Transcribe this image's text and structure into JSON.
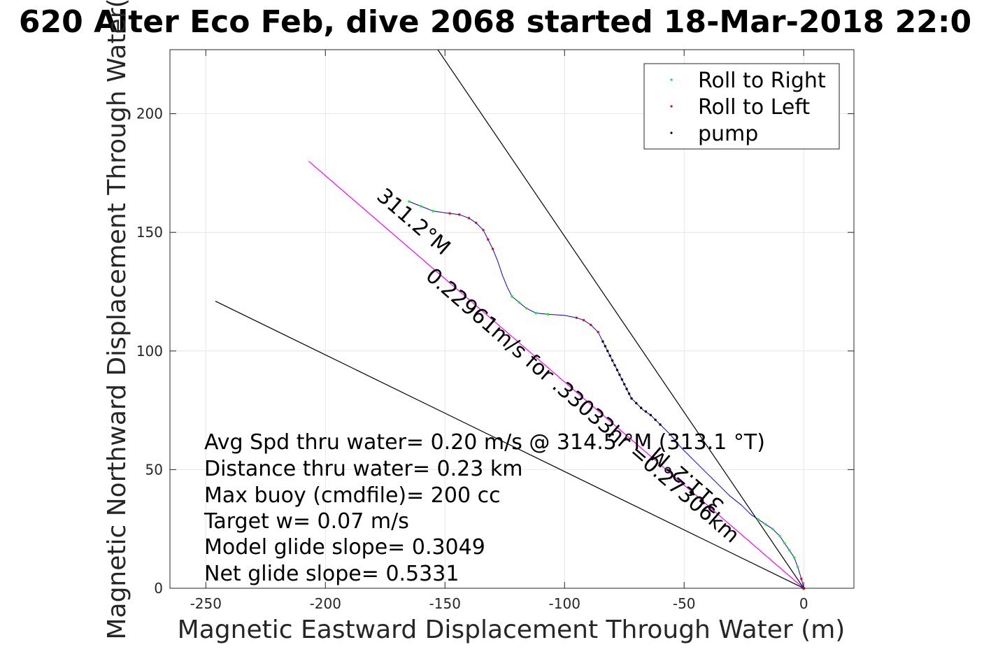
{
  "chart_data": {
    "type": "line",
    "title": "620 Alter Eco Feb, dive 2068 started 18-Mar-2018 22:0",
    "xlabel": "Magnetic Eastward Displacement Through Water (m)",
    "ylabel": "Magnetic Northward Displacement Through Water(",
    "xlim": [
      -265,
      21
    ],
    "ylim": [
      0,
      227
    ],
    "xticks": [
      -250,
      -200,
      -150,
      -100,
      -50,
      0
    ],
    "yticks": [
      0,
      50,
      100,
      150,
      200
    ],
    "grid": true,
    "legend_position": "top-right",
    "legend": [
      {
        "label": "Roll to Right",
        "color": "#00ff00"
      },
      {
        "label": "Roll to Left",
        "color": "#ff0000"
      },
      {
        "label": "pump",
        "color": "#000000"
      }
    ],
    "track": {
      "name": "dive track",
      "color": "#0000ff",
      "points": [
        [
          0,
          0
        ],
        [
          -1,
          4
        ],
        [
          -2.5,
          9
        ],
        [
          -4,
          13
        ],
        [
          -6,
          16
        ],
        [
          -8,
          19
        ],
        [
          -10,
          22
        ],
        [
          -13,
          25
        ],
        [
          -16,
          27
        ],
        [
          -19,
          29
        ],
        [
          -22,
          31
        ],
        [
          -26,
          35
        ],
        [
          -31,
          39
        ],
        [
          -36,
          44
        ],
        [
          -41,
          49
        ],
        [
          -46,
          54
        ],
        [
          -51,
          59
        ],
        [
          -56,
          65
        ],
        [
          -60,
          69
        ],
        [
          -64,
          73
        ],
        [
          -67,
          75
        ],
        [
          -70,
          78
        ],
        [
          -72,
          80
        ],
        [
          -74,
          84
        ],
        [
          -76,
          88
        ],
        [
          -78,
          92
        ],
        [
          -80,
          96
        ],
        [
          -82,
          100
        ],
        [
          -84,
          104
        ],
        [
          -86,
          108
        ],
        [
          -89,
          111
        ],
        [
          -92,
          113
        ],
        [
          -95,
          114
        ],
        [
          -100,
          115
        ],
        [
          -107,
          115.5
        ],
        [
          -112,
          116
        ],
        [
          -116,
          118
        ],
        [
          -119,
          120.5
        ],
        [
          -122,
          123
        ],
        [
          -124,
          127
        ],
        [
          -126,
          132
        ],
        [
          -128,
          138
        ],
        [
          -130,
          143
        ],
        [
          -132,
          147
        ],
        [
          -134,
          151
        ],
        [
          -137,
          154
        ],
        [
          -140,
          156
        ],
        [
          -144,
          157.5
        ],
        [
          -148,
          158
        ],
        [
          -155,
          159
        ],
        [
          -160,
          161
        ],
        [
          -165,
          163
        ]
      ],
      "markers": [
        {
          "x": -1,
          "y": 4,
          "type": "roll_left"
        },
        {
          "x": -2.5,
          "y": 9,
          "type": "roll_right"
        },
        {
          "x": -4,
          "y": 13,
          "type": "roll_right"
        },
        {
          "x": -6,
          "y": 16,
          "type": "roll_right"
        },
        {
          "x": -8,
          "y": 19,
          "type": "roll_right"
        },
        {
          "x": -10,
          "y": 22,
          "type": "roll_right"
        },
        {
          "x": -13,
          "y": 25,
          "type": "roll_right"
        },
        {
          "x": -16,
          "y": 27,
          "type": "roll_right"
        },
        {
          "x": -19,
          "y": 29,
          "type": "roll_right"
        },
        {
          "x": -60,
          "y": 69,
          "type": "pump"
        },
        {
          "x": -62,
          "y": 71,
          "type": "pump"
        },
        {
          "x": -64,
          "y": 73,
          "type": "pump"
        },
        {
          "x": -66,
          "y": 74.5,
          "type": "pump"
        },
        {
          "x": -68,
          "y": 76,
          "type": "pump"
        },
        {
          "x": -70,
          "y": 78,
          "type": "pump"
        },
        {
          "x": -72,
          "y": 80,
          "type": "pump"
        },
        {
          "x": -73,
          "y": 82,
          "type": "pump"
        },
        {
          "x": -74,
          "y": 84,
          "type": "pump"
        },
        {
          "x": -75,
          "y": 86,
          "type": "pump"
        },
        {
          "x": -76,
          "y": 88,
          "type": "pump"
        },
        {
          "x": -77,
          "y": 90,
          "type": "pump"
        },
        {
          "x": -78,
          "y": 92,
          "type": "pump"
        },
        {
          "x": -79,
          "y": 94,
          "type": "pump"
        },
        {
          "x": -80,
          "y": 96,
          "type": "pump"
        },
        {
          "x": -81,
          "y": 98,
          "type": "pump"
        },
        {
          "x": -82,
          "y": 100,
          "type": "pump"
        },
        {
          "x": -83,
          "y": 102,
          "type": "pump"
        },
        {
          "x": -84,
          "y": 104,
          "type": "pump"
        },
        {
          "x": -86,
          "y": 108,
          "type": "roll_left"
        },
        {
          "x": -89,
          "y": 111,
          "type": "roll_left"
        },
        {
          "x": -92,
          "y": 113,
          "type": "roll_left"
        },
        {
          "x": -95,
          "y": 114,
          "type": "roll_left"
        },
        {
          "x": -107,
          "y": 115.5,
          "type": "roll_right"
        },
        {
          "x": -112,
          "y": 116,
          "type": "roll_right"
        },
        {
          "x": -116,
          "y": 118,
          "type": "roll_right"
        },
        {
          "x": -119,
          "y": 120.5,
          "type": "roll_right"
        },
        {
          "x": -122,
          "y": 123,
          "type": "roll_right"
        },
        {
          "x": -130,
          "y": 143,
          "type": "roll_left"
        },
        {
          "x": -132,
          "y": 147,
          "type": "roll_left"
        },
        {
          "x": -134,
          "y": 151,
          "type": "roll_left"
        },
        {
          "x": -137,
          "y": 154,
          "type": "roll_left"
        },
        {
          "x": -140,
          "y": 156,
          "type": "roll_left"
        },
        {
          "x": -144,
          "y": 157.5,
          "type": "roll_left"
        },
        {
          "x": -148,
          "y": 158,
          "type": "roll_left"
        },
        {
          "x": -155,
          "y": 159,
          "type": "roll_right"
        },
        {
          "x": -160,
          "y": 161,
          "type": "roll_right"
        },
        {
          "x": -165,
          "y": 163,
          "type": "roll_right"
        }
      ]
    },
    "reference_lines": [
      {
        "name": "heading-line",
        "color": "#ff00ff",
        "from": [
          0,
          0
        ],
        "to": [
          -207,
          180
        ]
      },
      {
        "name": "upper-bound-line",
        "color": "#000000",
        "from": [
          0,
          0
        ],
        "to": [
          -153,
          227
        ]
      },
      {
        "name": "lower-bound-line",
        "color": "#000000",
        "from": [
          0,
          0
        ],
        "to": [
          -246,
          121
        ]
      }
    ],
    "annotations": {
      "heading_upper": "311.2°M",
      "heading_lower": "311.2°M",
      "speed_label": "0.22961m/s for .33033hr =0.27306km"
    },
    "stats": [
      "Avg Spd thru water=  0.20 m/s @ 314.5 °M (313.1 °T)",
      "Distance thru water=  0.23 km",
      "Max buoy (cmdfile)= 200 cc",
      "Target w= 0.07 m/s",
      "Model glide slope= 0.3049",
      "Net glide slope= 0.5331"
    ],
    "marker_colors": {
      "roll_right": "#00ff00",
      "roll_left": "#ff0000",
      "pump": "#000000"
    }
  }
}
